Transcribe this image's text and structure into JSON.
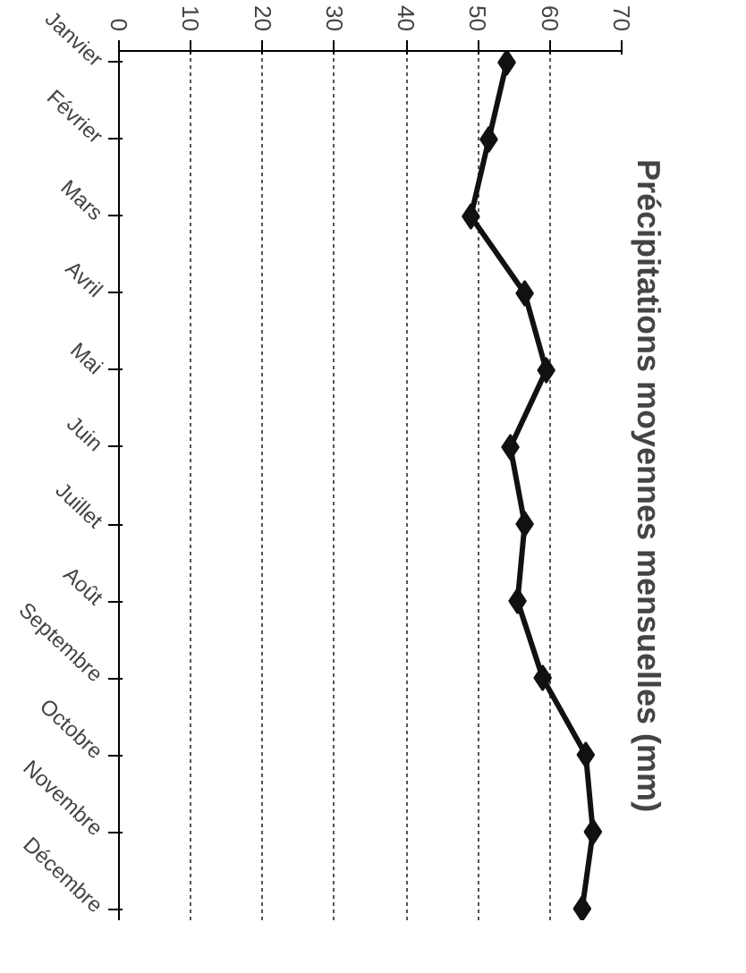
{
  "chart_data": {
    "type": "line",
    "orientation": "horizontal",
    "title": "Précipitations moyennes mensuelles (mm)",
    "categories": [
      "Janvier",
      "Février",
      "Mars",
      "Avril",
      "Mai",
      "Juin",
      "Juillet",
      "Août",
      "Septembre",
      "Octobre",
      "Novembre",
      "Décembre"
    ],
    "series": [
      {
        "color": "#111111",
        "values": [
          54,
          51.5,
          49,
          56.5,
          59.5,
          54.5,
          56.5,
          55.5,
          59,
          65,
          66,
          64.5
        ]
      }
    ],
    "xlim": [
      0,
      70
    ],
    "xticks": [
      0,
      10,
      20,
      30,
      40,
      50,
      60,
      70
    ],
    "grid": "x",
    "marker": "diamond",
    "line_style": "solid"
  }
}
